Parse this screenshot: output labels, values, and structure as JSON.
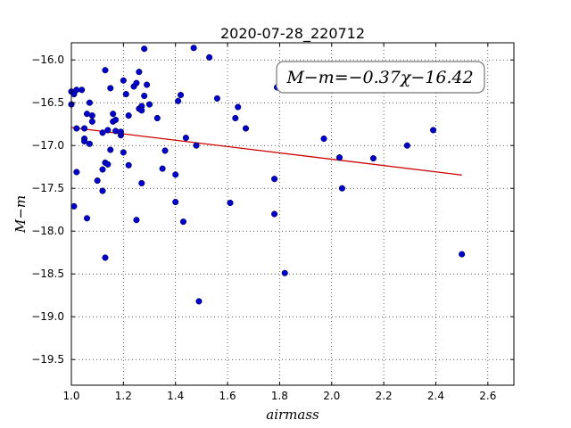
{
  "chart_data": {
    "type": "scatter",
    "title": "2020-07-28_220712",
    "xlabel": "airmass",
    "ylabel": "M−m",
    "xlim": [
      1.0,
      2.7
    ],
    "ylim": [
      -19.8,
      -15.8
    ],
    "y_inverted": true,
    "xticks": [
      1.0,
      1.2,
      1.4,
      1.6,
      1.8,
      2.0,
      2.2,
      2.4,
      2.6
    ],
    "xtick_labels": [
      "1.0",
      "1.2",
      "1.4",
      "1.6",
      "1.8",
      "2.0",
      "2.2",
      "2.4",
      "2.6"
    ],
    "yticks": [
      -16.0,
      -16.5,
      -17.0,
      -17.5,
      -18.0,
      -18.5,
      -19.0,
      -19.5
    ],
    "ytick_labels": [
      "−16.0",
      "−16.5",
      "−17.0",
      "−17.5",
      "−18.0",
      "−18.5",
      "−19.0",
      "−19.5"
    ],
    "grid": true,
    "point_color": "#0000cc",
    "line_color": "#cc0000",
    "annotation": "M−m=−0.37χ−16.42",
    "fit": {
      "slope": -0.37,
      "intercept": -16.42,
      "x_range": [
        1.0,
        2.5
      ]
    },
    "points": [
      [
        1.0,
        -16.37
      ],
      [
        1.01,
        -16.4
      ],
      [
        1.0,
        -16.52
      ],
      [
        1.02,
        -16.35
      ],
      [
        1.04,
        -16.35
      ],
      [
        1.02,
        -16.8
      ],
      [
        1.05,
        -16.8
      ],
      [
        1.06,
        -16.63
      ],
      [
        1.07,
        -16.5
      ],
      [
        1.08,
        -16.65
      ],
      [
        1.05,
        -16.92
      ],
      [
        1.05,
        -16.95
      ],
      [
        1.07,
        -16.98
      ],
      [
        1.08,
        -16.72
      ],
      [
        1.02,
        -17.31
      ],
      [
        1.01,
        -17.71
      ],
      [
        1.06,
        -17.85
      ],
      [
        1.1,
        -17.41
      ],
      [
        1.12,
        -17.28
      ],
      [
        1.12,
        -17.53
      ],
      [
        1.13,
        -17.2
      ],
      [
        1.14,
        -17.22
      ],
      [
        1.12,
        -16.85
      ],
      [
        1.14,
        -16.82
      ],
      [
        1.15,
        -16.33
      ],
      [
        1.13,
        -16.12
      ],
      [
        1.16,
        -16.72
      ],
      [
        1.16,
        -16.63
      ],
      [
        1.17,
        -16.83
      ],
      [
        1.17,
        -16.7
      ],
      [
        1.19,
        -16.88
      ],
      [
        1.19,
        -16.84
      ],
      [
        1.2,
        -16.24
      ],
      [
        1.21,
        -16.4
      ],
      [
        1.15,
        -17.05
      ],
      [
        1.2,
        -17.08
      ],
      [
        1.22,
        -16.65
      ],
      [
        1.22,
        -17.23
      ],
      [
        1.24,
        -16.31
      ],
      [
        1.25,
        -16.27
      ],
      [
        1.26,
        -16.14
      ],
      [
        1.26,
        -16.57
      ],
      [
        1.27,
        -16.54
      ],
      [
        1.27,
        -16.59
      ],
      [
        1.28,
        -16.42
      ],
      [
        1.29,
        -16.29
      ],
      [
        1.28,
        -15.87
      ],
      [
        1.3,
        -16.52
      ],
      [
        1.27,
        -17.44
      ],
      [
        1.25,
        -17.87
      ],
      [
        1.13,
        -18.31
      ],
      [
        1.33,
        -16.68
      ],
      [
        1.35,
        -17.27
      ],
      [
        1.36,
        -17.06
      ],
      [
        1.4,
        -17.34
      ],
      [
        1.4,
        -17.66
      ],
      [
        1.41,
        -16.48
      ],
      [
        1.42,
        -16.41
      ],
      [
        1.43,
        -17.89
      ],
      [
        1.44,
        -16.91
      ],
      [
        1.47,
        -15.86
      ],
      [
        1.48,
        -17.0
      ],
      [
        1.49,
        -18.82
      ],
      [
        1.53,
        -15.97
      ],
      [
        1.56,
        -16.45
      ],
      [
        1.61,
        -17.67
      ],
      [
        1.63,
        -16.68
      ],
      [
        1.64,
        -16.55
      ],
      [
        1.67,
        -16.8
      ],
      [
        1.78,
        -17.39
      ],
      [
        1.78,
        -17.8
      ],
      [
        1.79,
        -16.32
      ],
      [
        1.82,
        -18.49
      ],
      [
        1.97,
        -16.92
      ],
      [
        2.03,
        -17.14
      ],
      [
        2.04,
        -17.5
      ],
      [
        2.16,
        -17.15
      ],
      [
        2.29,
        -17.0
      ],
      [
        2.39,
        -16.82
      ],
      [
        2.5,
        -18.27
      ]
    ]
  }
}
